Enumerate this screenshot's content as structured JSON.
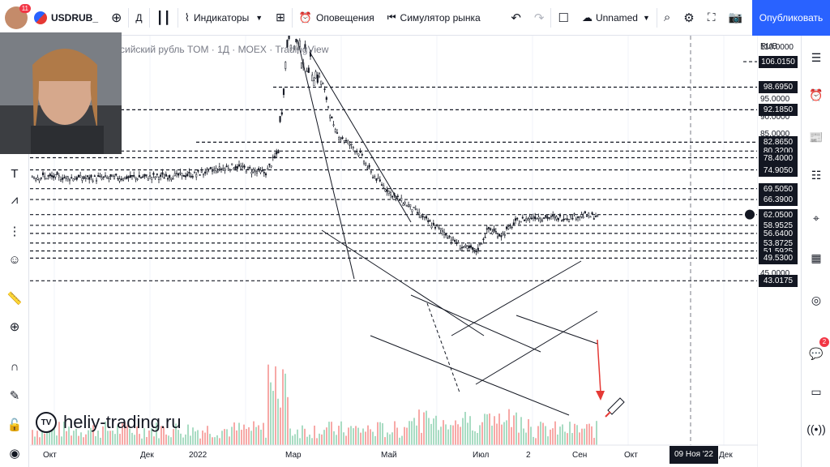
{
  "toolbar": {
    "avatar_badge": "11",
    "symbol": "USDRUB_",
    "interval": "Д",
    "indicators_label": "Индикаторы",
    "alerts_label": "Оповещения",
    "replay_label": "Симулятор рынка",
    "layout_name": "Unnamed",
    "publish_label": "Опубликовать"
  },
  "legend_title": "сийский рубль TOM · 1Д · MOEX · TradingView",
  "price_axis": {
    "currency": "RUB",
    "ticks": [
      {
        "value": 110,
        "text": "110.0000"
      },
      {
        "value": 95,
        "text": "95.0000"
      },
      {
        "value": 90,
        "text": "90.0000"
      },
      {
        "value": 85,
        "text": "85.0000"
      },
      {
        "value": 45,
        "text": "45.0000"
      }
    ],
    "level_labels": [
      {
        "value": 106.015,
        "text": "106.0150"
      },
      {
        "value": 98.695,
        "text": "98.6950"
      },
      {
        "value": 92.185,
        "text": "92.1850"
      },
      {
        "value": 82.865,
        "text": "82.8650"
      },
      {
        "value": 80.32,
        "text": "80.3200"
      },
      {
        "value": 78.4,
        "text": "78.4000"
      },
      {
        "value": 74.905,
        "text": "74.9050"
      },
      {
        "value": 69.505,
        "text": "69.5050"
      },
      {
        "value": 66.39,
        "text": "66.3900"
      },
      {
        "value": 62.05,
        "text": "62.0500"
      },
      {
        "value": 58.9525,
        "text": "58.9525"
      },
      {
        "value": 56.64,
        "text": "56.6400"
      },
      {
        "value": 53.8725,
        "text": "53.8725"
      },
      {
        "value": 51.5925,
        "text": "51.5925"
      },
      {
        "value": 49.53,
        "text": "49.5300"
      },
      {
        "value": 43.0175,
        "text": "43.0175"
      }
    ]
  },
  "time_axis": {
    "labels": [
      "Окт",
      "Дек",
      "2022",
      "Мар",
      "Май",
      "Июл",
      "2",
      "Сен",
      "Окт",
      "Дек"
    ],
    "crosshair_label": "09 Ноя '22"
  },
  "watermark": "heliy-trading.ru",
  "right_panel": {
    "chat_badge": "2"
  },
  "chart_data": {
    "type": "candlestick",
    "ylim": [
      43,
      115
    ],
    "price_path": [
      {
        "x": "Окт",
        "y": 73.0
      },
      {
        "x": "Дек",
        "y": 73.5
      },
      {
        "x": "2022",
        "y": 74.5
      },
      {
        "x": "Мар",
        "y": 115
      },
      {
        "x": "Май",
        "y": 66
      },
      {
        "x": "Июл",
        "y": 51.5
      },
      {
        "x": "2",
        "y": 61
      },
      {
        "x": "Сен",
        "y": 61.5
      }
    ],
    "horizontal_levels": [
      106.015,
      98.695,
      92.185,
      82.865,
      80.32,
      78.4,
      74.905,
      69.505,
      66.39,
      62.05,
      58.9525,
      56.64,
      53.8725,
      51.5925,
      49.53,
      43.0175
    ],
    "colors": {
      "levels": "#131722",
      "projection_arrow": "#e53935",
      "current_price": "#2962ff"
    }
  }
}
